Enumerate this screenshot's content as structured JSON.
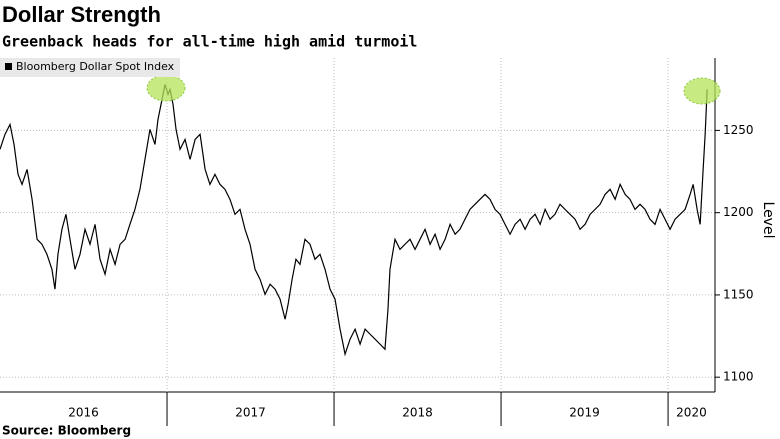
{
  "chart_data": {
    "type": "line",
    "title": "Dollar Strength",
    "subtitle": "Greenback heads for all-time high amid turmoil",
    "source": "Source: Bloomberg",
    "y_label": "Level",
    "x": [
      2016.0,
      2016.03,
      2016.06,
      2016.084,
      2016.108,
      2016.132,
      2016.162,
      2016.192,
      2016.222,
      2016.251,
      2016.281,
      2016.311,
      2016.329,
      2016.347,
      2016.371,
      2016.395,
      2016.419,
      2016.449,
      2016.479,
      2016.509,
      2016.539,
      2016.569,
      2016.599,
      2016.629,
      2016.659,
      2016.689,
      2016.719,
      2016.749,
      2016.778,
      2016.808,
      2016.838,
      2016.868,
      2016.898,
      2016.928,
      2016.946,
      2016.97,
      2016.988,
      2017.006,
      2017.018,
      2017.036,
      2017.054,
      2017.078,
      2017.108,
      2017.138,
      2017.168,
      2017.198,
      2017.228,
      2017.257,
      2017.287,
      2017.317,
      2017.347,
      2017.377,
      2017.407,
      2017.437,
      2017.467,
      2017.497,
      2017.527,
      2017.557,
      2017.587,
      2017.617,
      2017.647,
      2017.677,
      2017.707,
      2017.725,
      2017.749,
      2017.772,
      2017.796,
      2017.826,
      2017.856,
      2017.886,
      2017.916,
      2017.946,
      2017.976,
      2018.006,
      2018.036,
      2018.066,
      2018.096,
      2018.126,
      2018.156,
      2018.186,
      2018.216,
      2018.246,
      2018.275,
      2018.305,
      2018.323,
      2018.335,
      2018.365,
      2018.395,
      2018.425,
      2018.455,
      2018.485,
      2018.515,
      2018.545,
      2018.575,
      2018.605,
      2018.635,
      2018.665,
      2018.695,
      2018.725,
      2018.754,
      2018.784,
      2018.814,
      2018.844,
      2018.874,
      2018.904,
      2018.934,
      2018.964,
      2018.994,
      2019.024,
      2019.054,
      2019.084,
      2019.114,
      2019.144,
      2019.174,
      2019.204,
      2019.234,
      2019.264,
      2019.293,
      2019.323,
      2019.353,
      2019.383,
      2019.413,
      2019.443,
      2019.473,
      2019.503,
      2019.533,
      2019.563,
      2019.593,
      2019.623,
      2019.653,
      2019.683,
      2019.713,
      2019.743,
      2019.772,
      2019.802,
      2019.832,
      2019.862,
      2019.892,
      2019.922,
      2019.952,
      2019.982,
      2020.012,
      2020.042,
      2020.072,
      2020.102,
      2020.132,
      2020.15,
      2020.174,
      2020.192,
      2020.21,
      2020.222,
      2020.234
    ],
    "series": [
      {
        "name": "Bloomberg Dollar Spot Index",
        "color": "#000000",
        "values": [
          1238.5,
          1247.6,
          1253.6,
          1241.5,
          1223.3,
          1217.2,
          1226.3,
          1208.1,
          1183.8,
          1180.8,
          1174.7,
          1165.6,
          1153.5,
          1174.7,
          1189.9,
          1199.0,
          1183.8,
          1165.6,
          1174.7,
          1189.9,
          1180.8,
          1192.9,
          1171.7,
          1162.6,
          1177.7,
          1168.6,
          1180.8,
          1183.8,
          1192.9,
          1202.0,
          1214.2,
          1232.4,
          1250.6,
          1241.5,
          1256.7,
          1268.8,
          1277.9,
          1271.9,
          1274.9,
          1265.8,
          1250.6,
          1238.5,
          1244.5,
          1232.4,
          1244.5,
          1247.6,
          1226.3,
          1217.2,
          1223.3,
          1217.2,
          1214.2,
          1208.1,
          1199.0,
          1202.0,
          1189.9,
          1180.8,
          1165.6,
          1159.5,
          1150.4,
          1156.5,
          1153.5,
          1147.4,
          1135.2,
          1144.3,
          1159.5,
          1171.7,
          1168.6,
          1183.8,
          1180.8,
          1171.7,
          1174.7,
          1165.6,
          1153.5,
          1147.4,
          1129.2,
          1114.0,
          1123.1,
          1129.2,
          1120.1,
          1129.2,
          1126.1,
          1123.1,
          1120.1,
          1117.0,
          1141.3,
          1165.6,
          1183.8,
          1177.7,
          1180.8,
          1183.8,
          1177.7,
          1183.8,
          1189.9,
          1180.8,
          1186.9,
          1177.7,
          1183.8,
          1192.9,
          1186.9,
          1189.9,
          1196.0,
          1202.0,
          1205.1,
          1208.1,
          1211.1,
          1208.1,
          1202.0,
          1199.0,
          1192.9,
          1186.9,
          1192.9,
          1196.0,
          1189.9,
          1196.0,
          1199.0,
          1192.9,
          1202.0,
          1196.0,
          1199.0,
          1205.1,
          1202.0,
          1199.0,
          1196.0,
          1189.9,
          1192.9,
          1199.0,
          1202.0,
          1205.1,
          1211.1,
          1214.2,
          1208.1,
          1217.2,
          1211.1,
          1208.1,
          1202.0,
          1205.1,
          1202.0,
          1196.0,
          1192.9,
          1202.0,
          1196.0,
          1189.9,
          1196.0,
          1199.0,
          1202.0,
          1211.1,
          1217.2,
          1202.0,
          1192.9,
          1226.3,
          1247.6,
          1274.9
        ]
      }
    ],
    "xlim": [
      2016.0,
      2020.281
    ],
    "ylim": [
      1091,
      1294
    ],
    "xticks": [
      {
        "value": 2016.5,
        "label": "2016"
      },
      {
        "value": 2017.5,
        "label": "2017"
      },
      {
        "value": 2018.5,
        "label": "2018"
      },
      {
        "value": 2019.5,
        "label": "2019"
      },
      {
        "value": 2020.14,
        "label": "2020"
      }
    ],
    "yticks": [
      1100,
      1150,
      1200,
      1250
    ],
    "grid": true,
    "legend": "top-left"
  }
}
